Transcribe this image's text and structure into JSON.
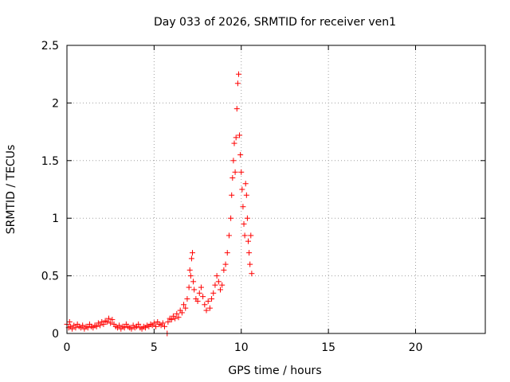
{
  "chart_data": {
    "type": "scatter",
    "title": "Day 033 of 2026, SRMTID for receiver ven1",
    "xlabel": "GPS time / hours",
    "ylabel": "SRMTID / TECUs",
    "xlim": [
      0,
      24
    ],
    "ylim": [
      0,
      2.5
    ],
    "xticks": [
      0,
      5,
      10,
      15,
      20
    ],
    "xtick_labels": [
      "0",
      "5",
      "10",
      "15",
      "20"
    ],
    "yticks": [
      0,
      0.5,
      1,
      1.5,
      2,
      2.5
    ],
    "ytick_labels": [
      "0",
      "0.5",
      "1",
      "1.5",
      "2",
      "2.5"
    ],
    "grid": true,
    "marker": "+",
    "color": "#ff0000",
    "series": [
      {
        "name": "SRMTID",
        "points": [
          [
            0.0,
            0.08
          ],
          [
            0.1,
            0.05
          ],
          [
            0.15,
            0.1
          ],
          [
            0.2,
            0.06
          ],
          [
            0.3,
            0.04
          ],
          [
            0.4,
            0.07
          ],
          [
            0.5,
            0.05
          ],
          [
            0.6,
            0.08
          ],
          [
            0.7,
            0.06
          ],
          [
            0.8,
            0.05
          ],
          [
            0.9,
            0.07
          ],
          [
            1.0,
            0.04
          ],
          [
            1.1,
            0.06
          ],
          [
            1.2,
            0.05
          ],
          [
            1.3,
            0.08
          ],
          [
            1.4,
            0.06
          ],
          [
            1.5,
            0.05
          ],
          [
            1.6,
            0.07
          ],
          [
            1.7,
            0.06
          ],
          [
            1.8,
            0.09
          ],
          [
            1.9,
            0.07
          ],
          [
            2.0,
            0.1
          ],
          [
            2.1,
            0.08
          ],
          [
            2.2,
            0.11
          ],
          [
            2.3,
            0.1
          ],
          [
            2.4,
            0.13
          ],
          [
            2.5,
            0.09
          ],
          [
            2.6,
            0.12
          ],
          [
            2.7,
            0.08
          ],
          [
            2.8,
            0.06
          ],
          [
            2.9,
            0.05
          ],
          [
            3.0,
            0.07
          ],
          [
            3.1,
            0.04
          ],
          [
            3.2,
            0.06
          ],
          [
            3.3,
            0.05
          ],
          [
            3.4,
            0.08
          ],
          [
            3.5,
            0.06
          ],
          [
            3.6,
            0.05
          ],
          [
            3.7,
            0.04
          ],
          [
            3.8,
            0.07
          ],
          [
            3.9,
            0.05
          ],
          [
            4.0,
            0.06
          ],
          [
            4.1,
            0.08
          ],
          [
            4.2,
            0.05
          ],
          [
            4.3,
            0.04
          ],
          [
            4.4,
            0.06
          ],
          [
            4.5,
            0.05
          ],
          [
            4.6,
            0.07
          ],
          [
            4.7,
            0.06
          ],
          [
            4.8,
            0.08
          ],
          [
            4.9,
            0.07
          ],
          [
            5.0,
            0.09
          ],
          [
            5.1,
            0.06
          ],
          [
            5.2,
            0.1
          ],
          [
            5.3,
            0.08
          ],
          [
            5.4,
            0.07
          ],
          [
            5.5,
            0.09
          ],
          [
            5.6,
            0.06
          ],
          [
            5.75,
            0.0
          ],
          [
            5.8,
            0.1
          ],
          [
            5.9,
            0.13
          ],
          [
            6.0,
            0.12
          ],
          [
            6.1,
            0.15
          ],
          [
            6.2,
            0.13
          ],
          [
            6.3,
            0.17
          ],
          [
            6.4,
            0.14
          ],
          [
            6.5,
            0.2
          ],
          [
            6.6,
            0.18
          ],
          [
            6.7,
            0.25
          ],
          [
            6.8,
            0.22
          ],
          [
            6.9,
            0.3
          ],
          [
            7.0,
            0.4
          ],
          [
            7.05,
            0.55
          ],
          [
            7.1,
            0.5
          ],
          [
            7.15,
            0.65
          ],
          [
            7.2,
            0.7
          ],
          [
            7.25,
            0.45
          ],
          [
            7.3,
            0.38
          ],
          [
            7.4,
            0.3
          ],
          [
            7.5,
            0.28
          ],
          [
            7.6,
            0.35
          ],
          [
            7.7,
            0.4
          ],
          [
            7.8,
            0.32
          ],
          [
            7.9,
            0.25
          ],
          [
            8.0,
            0.2
          ],
          [
            8.1,
            0.28
          ],
          [
            8.2,
            0.22
          ],
          [
            8.3,
            0.3
          ],
          [
            8.4,
            0.35
          ],
          [
            8.5,
            0.42
          ],
          [
            8.6,
            0.5
          ],
          [
            8.7,
            0.45
          ],
          [
            8.8,
            0.38
          ],
          [
            8.9,
            0.42
          ],
          [
            9.0,
            0.55
          ],
          [
            9.1,
            0.6
          ],
          [
            9.2,
            0.7
          ],
          [
            9.3,
            0.85
          ],
          [
            9.4,
            1.0
          ],
          [
            9.45,
            1.2
          ],
          [
            9.5,
            1.35
          ],
          [
            9.55,
            1.5
          ],
          [
            9.6,
            1.65
          ],
          [
            9.65,
            1.4
          ],
          [
            9.7,
            1.7
          ],
          [
            9.75,
            1.95
          ],
          [
            9.8,
            2.17
          ],
          [
            9.85,
            2.25
          ],
          [
            9.9,
            1.72
          ],
          [
            9.95,
            1.55
          ],
          [
            10.0,
            1.4
          ],
          [
            10.05,
            1.25
          ],
          [
            10.1,
            1.1
          ],
          [
            10.15,
            0.95
          ],
          [
            10.2,
            0.85
          ],
          [
            10.25,
            1.3
          ],
          [
            10.3,
            1.2
          ],
          [
            10.35,
            1.0
          ],
          [
            10.4,
            0.8
          ],
          [
            10.45,
            0.7
          ],
          [
            10.5,
            0.6
          ],
          [
            10.55,
            0.85
          ],
          [
            10.6,
            0.52
          ]
        ]
      }
    ]
  }
}
